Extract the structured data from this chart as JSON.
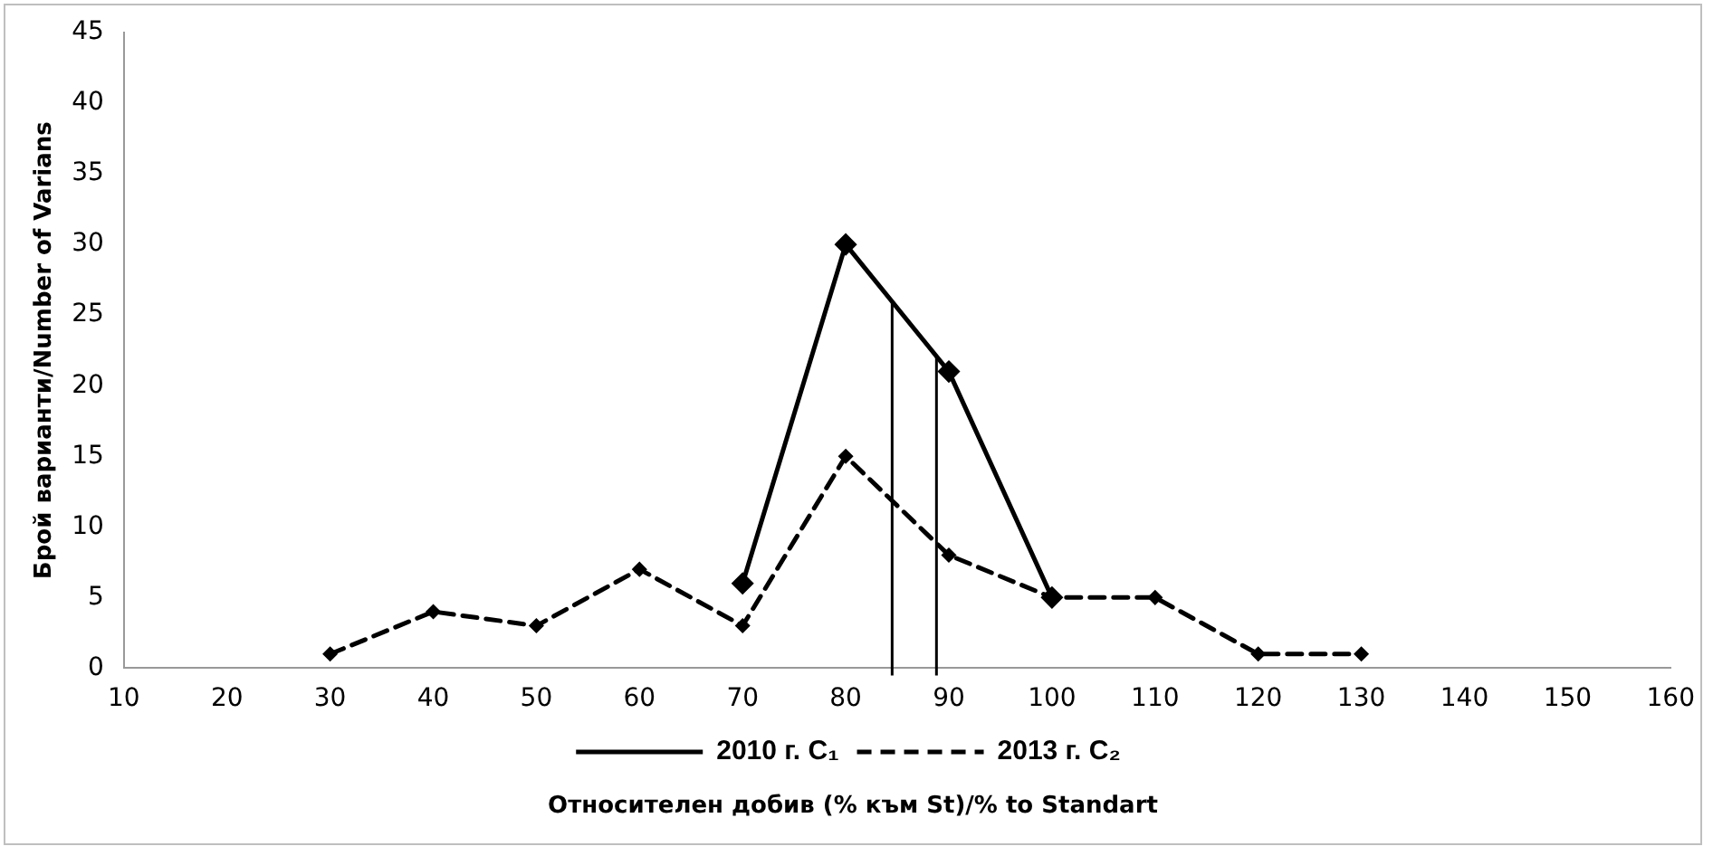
{
  "chart_data": {
    "type": "line",
    "xlabel": "Относителен добив (% към St)/% to Standart",
    "ylabel": "Брой варианти/Number of Varians",
    "xlim": [
      10,
      160
    ],
    "xticks": [
      10,
      20,
      30,
      40,
      50,
      60,
      70,
      80,
      90,
      100,
      110,
      120,
      130,
      140,
      150,
      160
    ],
    "ylim": [
      0,
      45
    ],
    "yticks": [
      0,
      5,
      10,
      15,
      20,
      25,
      30,
      35,
      40,
      45
    ],
    "grid": false,
    "legend": "bottom",
    "marker": "diamond",
    "series": [
      {
        "name": "2010 г. C₁",
        "color": "#000000",
        "line_style": "solid",
        "x": [
          70,
          80,
          90,
          100
        ],
        "values": [
          6,
          30,
          21,
          5
        ]
      },
      {
        "name": "2013 г. C₂",
        "color": "#000000",
        "line_style": "dashed",
        "x": [
          30,
          40,
          50,
          60,
          70,
          80,
          90,
          100,
          110,
          120,
          130
        ],
        "values": [
          1,
          4,
          3,
          7,
          3,
          15,
          8,
          5,
          5,
          1,
          1
        ]
      }
    ],
    "ref_lines": [
      {
        "axis": "x",
        "value": 84.5,
        "color": "#000000"
      },
      {
        "axis": "x",
        "value": 88.8,
        "color": "#000000"
      }
    ]
  }
}
